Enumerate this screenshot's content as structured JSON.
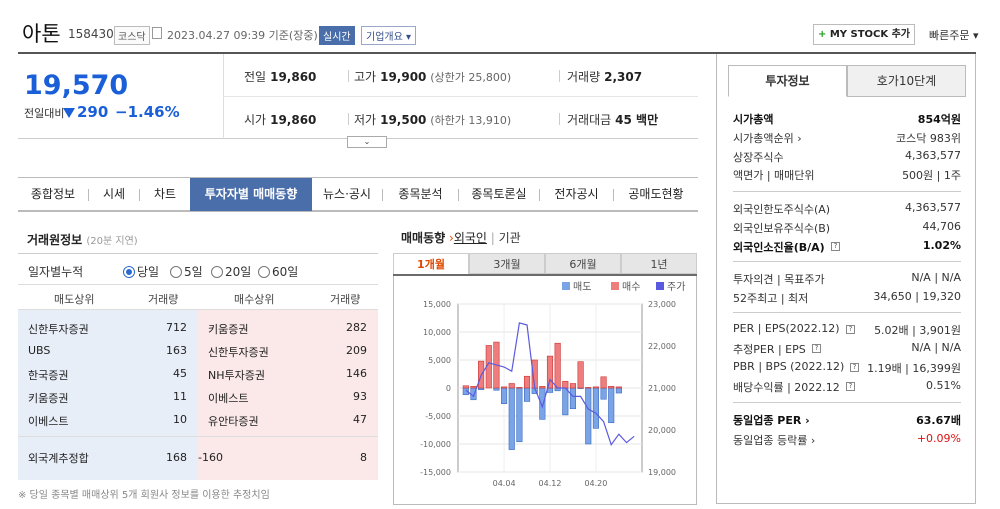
{
  "header": {
    "name": "아톤",
    "code": "158430",
    "market": "코스닥",
    "datetime": "2023.04.27 09:39 기준(장중)",
    "realtime": "실시간",
    "overview": "기업개요 ▾",
    "mystock": "MY STOCK 추가",
    "mystock_plus": "+",
    "quickorder": "빠른주문 ▾"
  },
  "price": {
    "current": "19,570",
    "compare_label": "전일대비",
    "change": "290",
    "change_pct": "−1.46%",
    "prev_label": "전일",
    "prev": "19,860",
    "high_label": "고가",
    "high": "19,900",
    "upper_label": "(상한가 25,800)",
    "volume_label": "거래량",
    "volume": "2,307",
    "open_label": "시가",
    "open": "19,860",
    "low_label": "저가",
    "low": "19,500",
    "lower_label": "(하한가 13,910)",
    "amount_label": "거래대금",
    "amount": "45 백만",
    "expand": "⌄"
  },
  "tabs": [
    "종합정보",
    "시세",
    "차트",
    "투자자별 매매동향",
    "뉴스·공시",
    "종목분석",
    "종목토론실",
    "전자공시",
    "공매도현황"
  ],
  "broker": {
    "title": "거래원정보",
    "sub": "(20분 지연)",
    "opt_label": "일자별누적",
    "options": [
      "당일",
      "5일",
      "20일",
      "60일"
    ],
    "selected": 0,
    "h_sell": "매도상위",
    "h_vol1": "거래량",
    "h_buy": "매수상위",
    "h_vol2": "거래량",
    "rows": [
      {
        "s": "신한투자증권",
        "sv": "712",
        "b": "키움증권",
        "bv": "282"
      },
      {
        "s": "UBS",
        "sv": "163",
        "b": "신한투자증권",
        "bv": "209"
      },
      {
        "s": "한국증권",
        "sv": "45",
        "b": "NH투자증권",
        "bv": "146"
      },
      {
        "s": "키움증권",
        "sv": "11",
        "b": "이베스트",
        "bv": "93"
      },
      {
        "s": "이베스트",
        "sv": "10",
        "b": "유안타증권",
        "bv": "47"
      }
    ],
    "foreign_label": "외국계추정합",
    "foreign_sell": "168",
    "foreign_net": "-160",
    "foreign_buy": "8",
    "footnote": "※ 당일 종목별 매매상위 5개 회원사 정보를 이용한 추정치임"
  },
  "trade": {
    "title": "매매동향",
    "arrow": "›",
    "foreign": "외국인",
    "sep": "|",
    "inst": "기관",
    "ctabs": [
      "1개월",
      "3개월",
      "6개월",
      "1년"
    ]
  },
  "chart_data": {
    "type": "bar",
    "legend": [
      "매도",
      "매수",
      "주가"
    ],
    "ylim": [
      -15000,
      15000
    ],
    "y2lim": [
      19000,
      23000
    ],
    "yticks": [
      "15,000",
      "10,000",
      "5,000",
      "0",
      "-5,000",
      "-10,000",
      "-15,000"
    ],
    "y2ticks": [
      "23,000",
      "22,000",
      "21,000",
      "20,000",
      "19,000"
    ],
    "xticks": [
      "04.04",
      "04.12",
      "04.20"
    ],
    "x": [
      "03.28",
      "03.29",
      "03.30",
      "03.31",
      "04.03",
      "04.04",
      "04.05",
      "04.06",
      "04.07",
      "04.10",
      "04.11",
      "04.12",
      "04.13",
      "04.14",
      "04.17",
      "04.18",
      "04.19",
      "04.20",
      "04.21",
      "04.24",
      "04.25",
      "04.26",
      "04.27"
    ],
    "sell": [
      -1200,
      -2100,
      -300,
      0,
      -400,
      -2800,
      -11000,
      -9600,
      -2400,
      -1000,
      -5600,
      -800,
      -500,
      -4800,
      -3700,
      -100,
      -10000,
      -7200,
      -2000,
      -6200,
      -900,
      0,
      0
    ],
    "buy": [
      400,
      300,
      4800,
      7600,
      8200,
      200,
      800,
      100,
      2100,
      5000,
      300,
      5700,
      8000,
      1200,
      800,
      4700,
      100,
      200,
      2000,
      300,
      200,
      0,
      0
    ],
    "price": [
      20950,
      20800,
      21300,
      21600,
      21550,
      21500,
      21400,
      22550,
      22500,
      21000,
      20550,
      21200,
      21000,
      21000,
      20800,
      20800,
      20500,
      20400,
      20200,
      19650,
      19900,
      19700,
      19850
    ]
  },
  "right": {
    "tab1": "투자정보",
    "tab2": "호가10단계",
    "rows": [
      {
        "l": "시가총액",
        "r": "854억원",
        "b": true
      },
      {
        "l": "시가총액순위 ›",
        "r": "코스닥 983위"
      },
      {
        "l": "상장주식수",
        "r": "4,363,577"
      },
      {
        "l": "액면가 | 매매단위",
        "r": "500원 | 1주"
      },
      {
        "l": "외국인한도주식수(A)",
        "r": "4,363,577"
      },
      {
        "l": "외국인보유주식수(B)",
        "r": "44,706"
      },
      {
        "l": "외국인소진율(B/A)",
        "r": "1.02%",
        "b": true
      },
      {
        "l": "투자의견 | 목표주가",
        "r": "N/A | N/A"
      },
      {
        "l": "52주최고 | 최저",
        "r": "34,650 | 19,320"
      },
      {
        "l": "PER | EPS(2022.12)",
        "r": "5.02배 | 3,901원"
      },
      {
        "l": "추정PER | EPS",
        "r": "N/A | N/A"
      },
      {
        "l": "PBR | BPS (2022.12)",
        "r": "1.19배 | 16,399원"
      },
      {
        "l": "배당수익률 | 2022.12",
        "r": "0.51%"
      },
      {
        "l": "동일업종 PER ›",
        "r": "63.67배",
        "b": true
      },
      {
        "l": "동일업종 등락률 ›",
        "r": "+0.09%",
        "red": true
      }
    ]
  }
}
